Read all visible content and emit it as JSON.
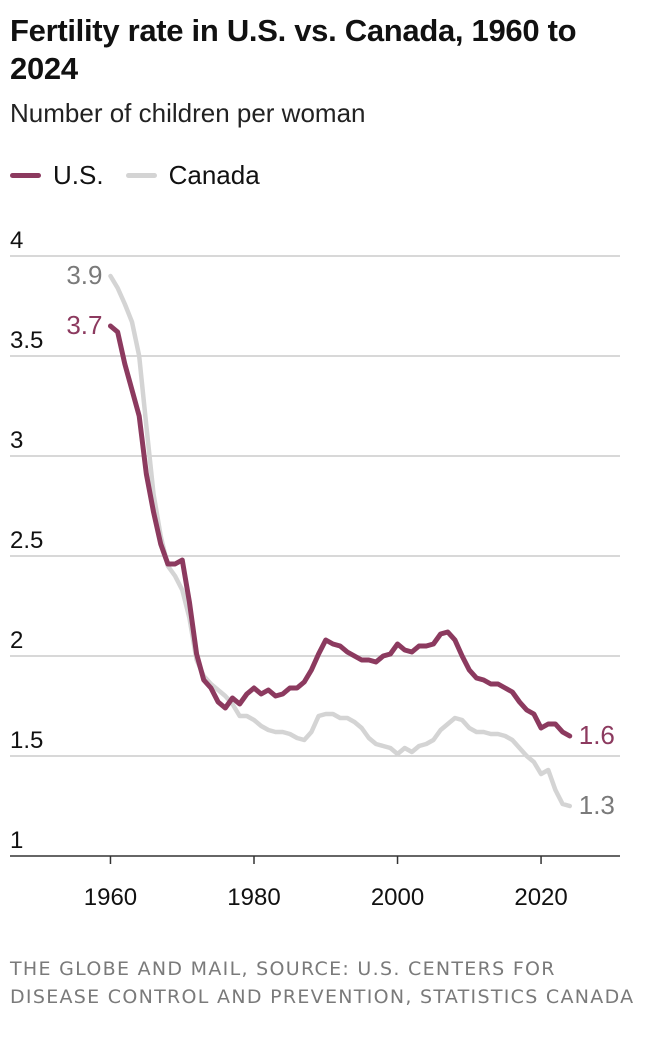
{
  "colors": {
    "us": "#8c3a5f",
    "canada": "#d4d4d4",
    "canada_label": "#7a7a7a",
    "grid": "#cccccc",
    "axis": "#333333"
  },
  "chart_data": {
    "type": "line",
    "title": "Fertility rate in U.S. vs. Canada, 1960 to 2024",
    "subtitle": "Number of children per woman",
    "xlim": [
      1946,
      2031
    ],
    "ylim": [
      1,
      4
    ],
    "x_ticks": [
      1960,
      1980,
      2000,
      2020
    ],
    "y_ticks": [
      1,
      1.5,
      2,
      2.5,
      3,
      3.5,
      4
    ],
    "grid": true,
    "legend_position": "top-left",
    "series": [
      {
        "name": "U.S.",
        "color": "#8c3a5f",
        "start_label": "3.7",
        "end_label": "1.6",
        "points": [
          [
            1960,
            3.65
          ],
          [
            1961,
            3.62
          ],
          [
            1962,
            3.46
          ],
          [
            1963,
            3.33
          ],
          [
            1964,
            3.2
          ],
          [
            1965,
            2.91
          ],
          [
            1966,
            2.72
          ],
          [
            1967,
            2.56
          ],
          [
            1968,
            2.46
          ],
          [
            1969,
            2.46
          ],
          [
            1970,
            2.48
          ],
          [
            1971,
            2.27
          ],
          [
            1972,
            2.01
          ],
          [
            1973,
            1.88
          ],
          [
            1974,
            1.84
          ],
          [
            1975,
            1.77
          ],
          [
            1976,
            1.74
          ],
          [
            1977,
            1.79
          ],
          [
            1978,
            1.76
          ],
          [
            1979,
            1.81
          ],
          [
            1980,
            1.84
          ],
          [
            1981,
            1.81
          ],
          [
            1982,
            1.83
          ],
          [
            1983,
            1.8
          ],
          [
            1984,
            1.81
          ],
          [
            1985,
            1.84
          ],
          [
            1986,
            1.84
          ],
          [
            1987,
            1.87
          ],
          [
            1988,
            1.93
          ],
          [
            1989,
            2.01
          ],
          [
            1990,
            2.08
          ],
          [
            1991,
            2.06
          ],
          [
            1992,
            2.05
          ],
          [
            1993,
            2.02
          ],
          [
            1994,
            2.0
          ],
          [
            1995,
            1.98
          ],
          [
            1996,
            1.98
          ],
          [
            1997,
            1.97
          ],
          [
            1998,
            2.0
          ],
          [
            1999,
            2.01
          ],
          [
            2000,
            2.06
          ],
          [
            2001,
            2.03
          ],
          [
            2002,
            2.02
          ],
          [
            2003,
            2.05
          ],
          [
            2004,
            2.05
          ],
          [
            2005,
            2.06
          ],
          [
            2006,
            2.11
          ],
          [
            2007,
            2.12
          ],
          [
            2008,
            2.08
          ],
          [
            2009,
            2.0
          ],
          [
            2010,
            1.93
          ],
          [
            2011,
            1.89
          ],
          [
            2012,
            1.88
          ],
          [
            2013,
            1.86
          ],
          [
            2014,
            1.86
          ],
          [
            2015,
            1.84
          ],
          [
            2016,
            1.82
          ],
          [
            2017,
            1.77
          ],
          [
            2018,
            1.73
          ],
          [
            2019,
            1.71
          ],
          [
            2020,
            1.64
          ],
          [
            2021,
            1.66
          ],
          [
            2022,
            1.66
          ],
          [
            2023,
            1.62
          ],
          [
            2024,
            1.6
          ]
        ]
      },
      {
        "name": "Canada",
        "color": "#d4d4d4",
        "start_label": "3.9",
        "end_label": "1.3",
        "points": [
          [
            1960,
            3.9
          ],
          [
            1961,
            3.84
          ],
          [
            1962,
            3.76
          ],
          [
            1963,
            3.67
          ],
          [
            1964,
            3.5
          ],
          [
            1965,
            3.15
          ],
          [
            1966,
            2.81
          ],
          [
            1967,
            2.6
          ],
          [
            1968,
            2.45
          ],
          [
            1969,
            2.4
          ],
          [
            1970,
            2.33
          ],
          [
            1971,
            2.19
          ],
          [
            1972,
            1.98
          ],
          [
            1973,
            1.9
          ],
          [
            1974,
            1.86
          ],
          [
            1975,
            1.83
          ],
          [
            1976,
            1.8
          ],
          [
            1977,
            1.76
          ],
          [
            1978,
            1.7
          ],
          [
            1979,
            1.7
          ],
          [
            1980,
            1.68
          ],
          [
            1981,
            1.65
          ],
          [
            1982,
            1.63
          ],
          [
            1983,
            1.62
          ],
          [
            1984,
            1.62
          ],
          [
            1985,
            1.61
          ],
          [
            1986,
            1.59
          ],
          [
            1987,
            1.58
          ],
          [
            1988,
            1.62
          ],
          [
            1989,
            1.7
          ],
          [
            1990,
            1.71
          ],
          [
            1991,
            1.71
          ],
          [
            1992,
            1.69
          ],
          [
            1993,
            1.69
          ],
          [
            1994,
            1.67
          ],
          [
            1995,
            1.64
          ],
          [
            1996,
            1.59
          ],
          [
            1997,
            1.56
          ],
          [
            1998,
            1.55
          ],
          [
            1999,
            1.54
          ],
          [
            2000,
            1.51
          ],
          [
            2001,
            1.54
          ],
          [
            2002,
            1.52
          ],
          [
            2003,
            1.55
          ],
          [
            2004,
            1.56
          ],
          [
            2005,
            1.58
          ],
          [
            2006,
            1.63
          ],
          [
            2007,
            1.66
          ],
          [
            2008,
            1.69
          ],
          [
            2009,
            1.68
          ],
          [
            2010,
            1.64
          ],
          [
            2011,
            1.62
          ],
          [
            2012,
            1.62
          ],
          [
            2013,
            1.61
          ],
          [
            2014,
            1.61
          ],
          [
            2015,
            1.6
          ],
          [
            2016,
            1.58
          ],
          [
            2017,
            1.54
          ],
          [
            2018,
            1.5
          ],
          [
            2019,
            1.47
          ],
          [
            2020,
            1.41
          ],
          [
            2021,
            1.43
          ],
          [
            2022,
            1.33
          ],
          [
            2023,
            1.26
          ],
          [
            2024,
            1.25
          ]
        ]
      }
    ]
  },
  "source": "THE GLOBE AND MAIL, SOURCE: U.S. CENTERS FOR DISEASE CONTROL AND PREVENTION, STATISTICS CANADA"
}
